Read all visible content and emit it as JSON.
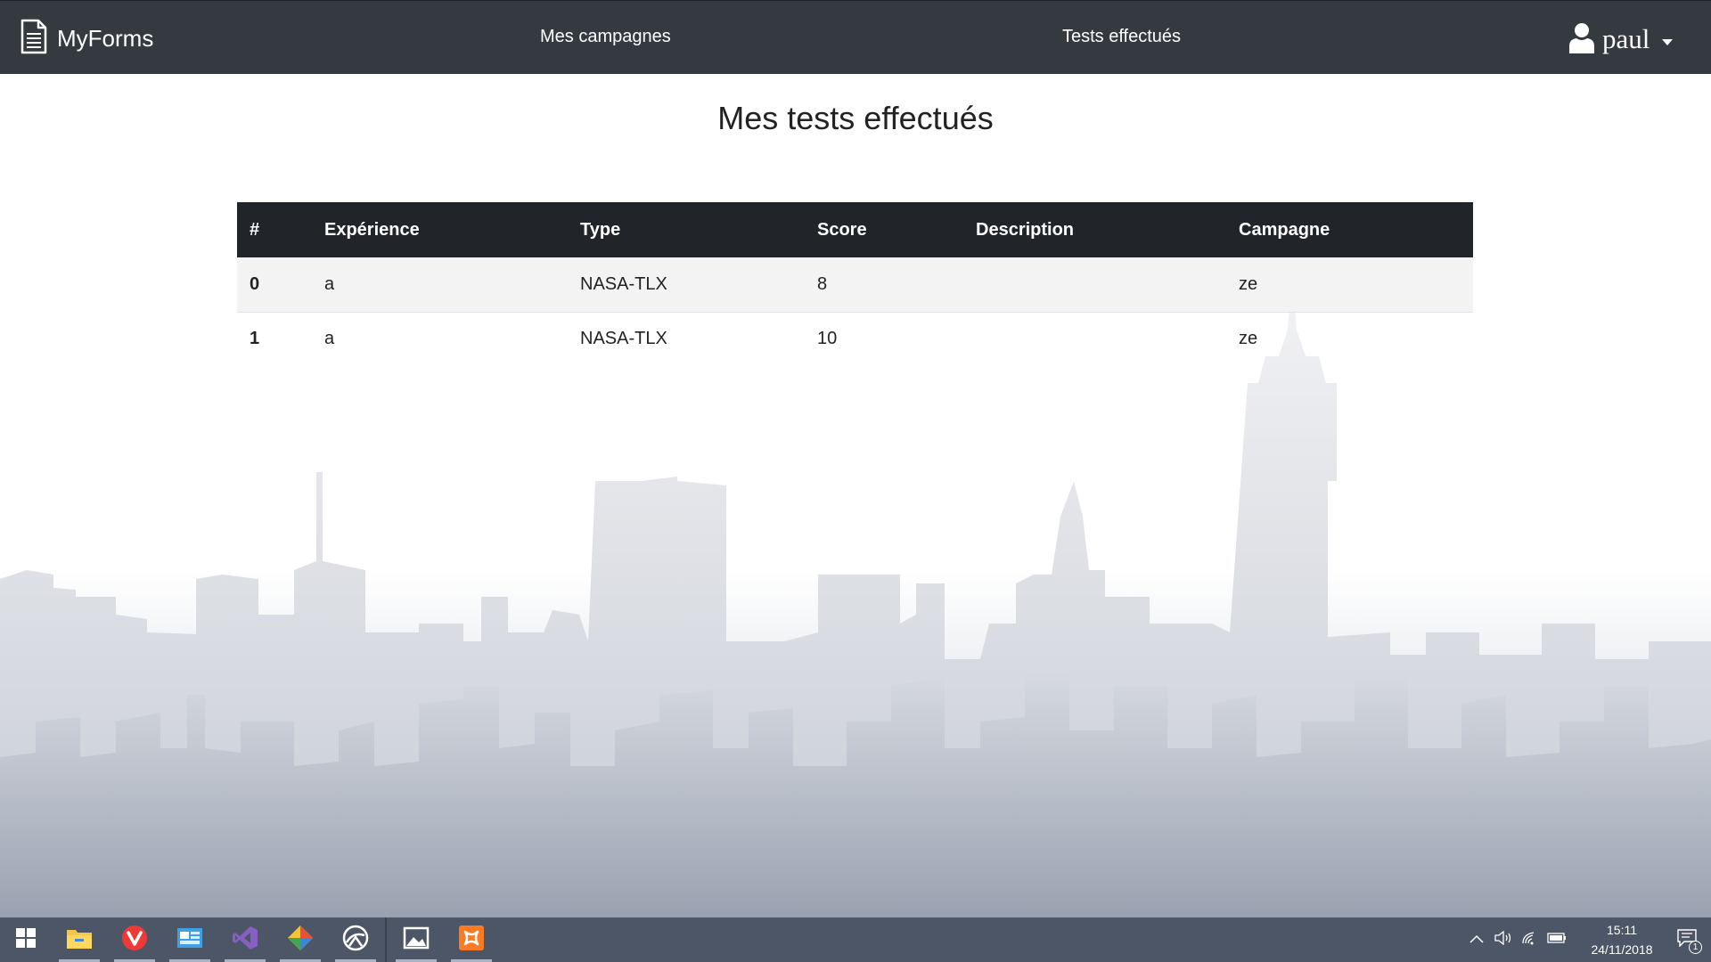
{
  "navbar": {
    "brand": "MyForms",
    "links": [
      "Mes campagnes",
      "Tests effectués"
    ],
    "user": "paul"
  },
  "page": {
    "title": "Mes tests effectués"
  },
  "table": {
    "columns": [
      "#",
      "Expérience",
      "Type",
      "Score",
      "Description",
      "Campagne"
    ],
    "rows": [
      [
        "0",
        "a",
        "NASA-TLX",
        "8",
        "",
        "ze"
      ],
      [
        "1",
        "a",
        "NASA-TLX",
        "10",
        "",
        "ze"
      ]
    ]
  },
  "taskbar": {
    "apps": [
      "file-explorer-icon",
      "vivaldi-icon",
      "control-panel-icon",
      "visual-studio-icon",
      "git-icon",
      "browser-icon",
      "photos-icon",
      "xampp-icon"
    ],
    "time": "15:11",
    "date": "24/11/2018",
    "notifications": "1"
  },
  "colors": {
    "navbar": "#343a40",
    "table_header": "#212529",
    "taskbar": "#4c5667"
  }
}
